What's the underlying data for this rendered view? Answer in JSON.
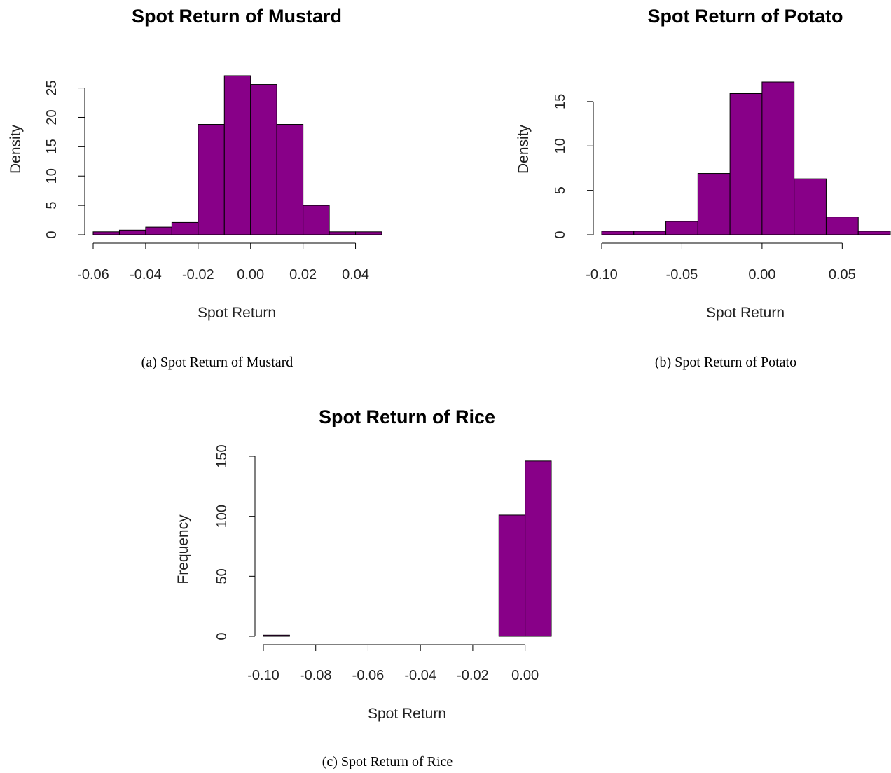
{
  "captions": [
    "(a) Spot Return of Mustard",
    "(b) Spot Return of Potato",
    "(c) Spot Return of Rice"
  ],
  "chart_data": [
    {
      "type": "bar",
      "title": "Spot Return of Mustard",
      "xlabel": "Spot Return",
      "ylabel": "Density",
      "bar_color": "#880088",
      "bin_edges": [
        -0.06,
        -0.05,
        -0.04,
        -0.03,
        -0.02,
        -0.01,
        0.0,
        0.01,
        0.02,
        0.03,
        0.04,
        0.05
      ],
      "values": [
        0.5,
        0.8,
        1.3,
        2.1,
        18.8,
        27.1,
        25.6,
        18.8,
        5.0,
        0.5,
        0.5
      ],
      "xlim": [
        -0.06,
        0.05
      ],
      "ylim": [
        0,
        27.1
      ],
      "xticks": [
        -0.06,
        -0.04,
        -0.02,
        0.0,
        0.02,
        0.04
      ],
      "xtick_labels": [
        "-0.06",
        "-0.04",
        "-0.02",
        "0.00",
        "0.02",
        "0.04"
      ],
      "yticks": [
        0,
        5,
        10,
        15,
        20,
        25
      ],
      "ytick_labels": [
        "0",
        "5",
        "10",
        "15",
        "20",
        "25"
      ]
    },
    {
      "type": "bar",
      "title": "Spot Return of Potato",
      "xlabel": "Spot Return",
      "ylabel": "Density",
      "bar_color": "#880088",
      "bin_edges": [
        -0.1,
        -0.08,
        -0.06,
        -0.04,
        -0.02,
        0.0,
        0.02,
        0.04,
        0.06,
        0.08
      ],
      "values": [
        0.4,
        0.4,
        1.5,
        6.9,
        15.9,
        17.2,
        6.3,
        2.0,
        0.4
      ],
      "xlim": [
        -0.1,
        0.08
      ],
      "ylim": [
        0,
        17.2
      ],
      "xticks": [
        -0.1,
        -0.05,
        0.0,
        0.05
      ],
      "xtick_labels": [
        "-0.10",
        "-0.05",
        "0.00",
        "0.05"
      ],
      "yticks": [
        0,
        5,
        10,
        15
      ],
      "ytick_labels": [
        "0",
        "5",
        "10",
        "15"
      ]
    },
    {
      "type": "bar",
      "title": "Spot Return of Rice",
      "xlabel": "Spot Return",
      "ylabel": "Frequency",
      "bar_color": "#880088",
      "bin_edges": [
        -0.1,
        -0.09,
        -0.08,
        -0.07,
        -0.06,
        -0.05,
        -0.04,
        -0.03,
        -0.02,
        -0.01,
        0.0,
        0.01
      ],
      "values": [
        1,
        0,
        0,
        0,
        0,
        0,
        0,
        0,
        0,
        101,
        146
      ],
      "xlim": [
        -0.1,
        0.01
      ],
      "ylim": [
        0,
        150
      ],
      "xticks": [
        -0.1,
        -0.08,
        -0.06,
        -0.04,
        -0.02,
        0.0
      ],
      "xtick_labels": [
        "-0.10",
        "-0.08",
        "-0.06",
        "-0.04",
        "-0.02",
        "0.00"
      ],
      "yticks": [
        0,
        50,
        100,
        150
      ],
      "ytick_labels": [
        "0",
        "50",
        "100",
        "150"
      ]
    }
  ]
}
